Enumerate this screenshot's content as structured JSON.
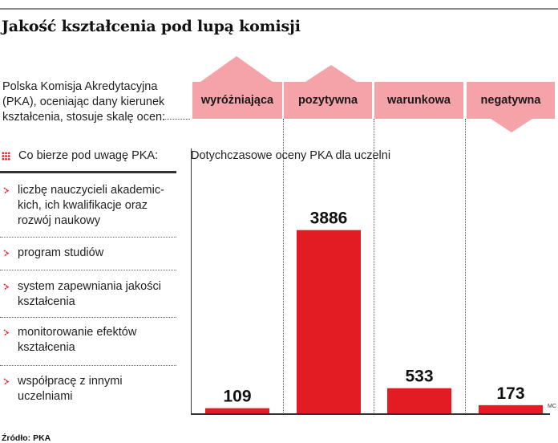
{
  "title": "Jakość kształcenia pod lupą komisji",
  "intro": "Polska Komisja Akredytacyjna (PKA), oceniając dany kierunek kształcenia, stosuje skalę ocen:",
  "scale": [
    {
      "label": "wyróżniająca",
      "arrow": "up-large"
    },
    {
      "label": "pozytywna",
      "arrow": "up-small"
    },
    {
      "label": "warunkowa",
      "arrow": "none"
    },
    {
      "label": "negatywna",
      "arrow": "down"
    }
  ],
  "criteria": {
    "heading": "Co bierze pod uwagę PKA:",
    "items": [
      "liczbę nauczycieli akademic-\nkich, ich kwalifikacje oraz\nrozwój naukowy",
      "program studiów",
      "system zapewniania jakości\nkształcenia",
      "monitorowanie efektów\nkształcenia",
      "współpracę z innymi\nuczelniami"
    ]
  },
  "chart_data": {
    "type": "bar",
    "title": "Dotychczasowe oceny PKA dla uczelni",
    "categories": [
      "wyróżniająca",
      "pozytywna",
      "warunkowa",
      "negatywna"
    ],
    "values": [
      109,
      3886,
      533,
      173
    ],
    "data_labels": [
      "109",
      "3886",
      "533",
      "173"
    ],
    "ylim": [
      0,
      4000
    ],
    "grid": false
  },
  "colors": {
    "bar": "#e31b23",
    "scale": "#f4a3a8",
    "accent": "#e31b23"
  },
  "credit": "MC",
  "source": "Źródło: PKA"
}
